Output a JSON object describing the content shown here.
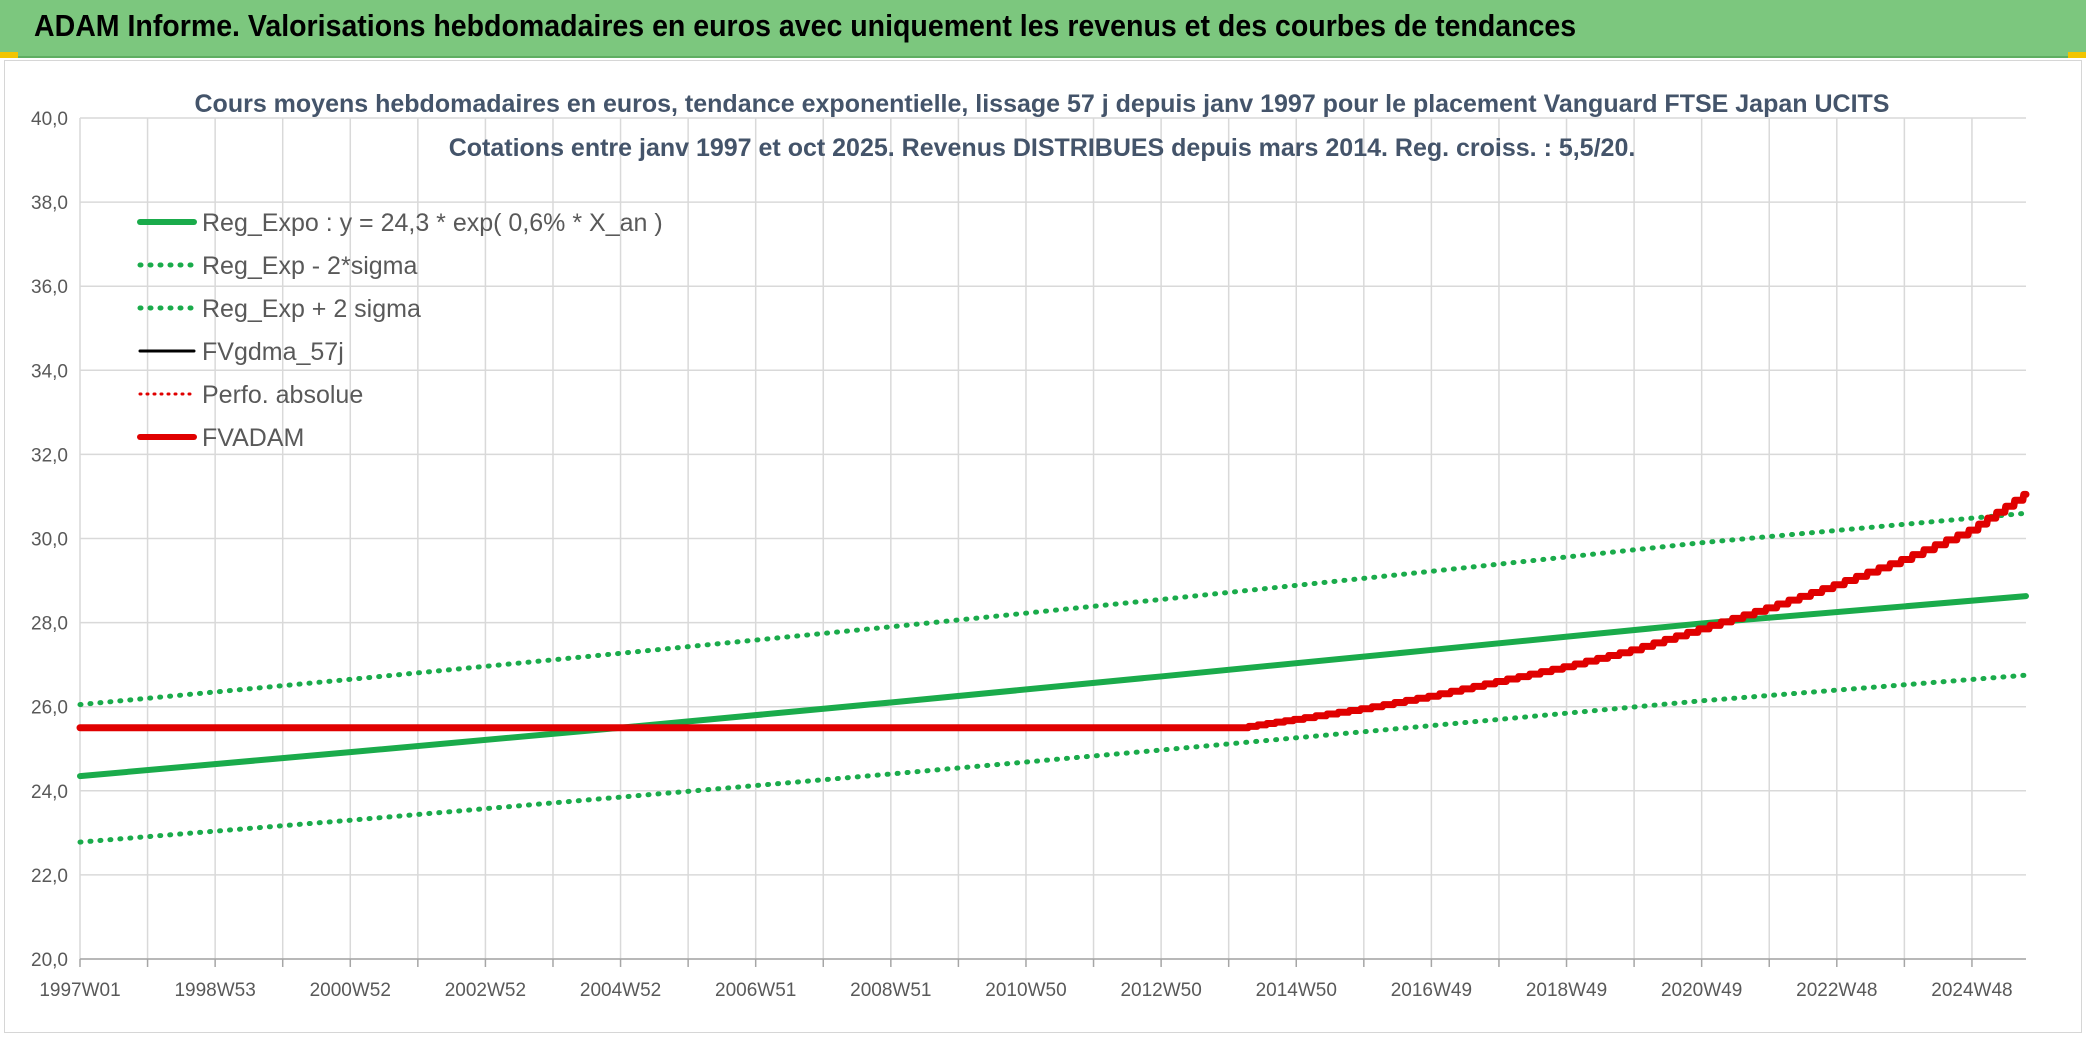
{
  "header": {
    "title": "ADAM Informe. Valorisations hebdomadaires en euros avec uniquement les revenus et des courbes de tendances"
  },
  "chart_data": {
    "type": "line",
    "title": "Cours moyens hebdomadaires en euros, tendance exponentielle, lissage 57 j depuis janv 1997 pour le placement Vanguard FTSE Japan UCITS",
    "subtitle": "Cotations entre janv 1997 et oct 2025. Revenus DISTRIBUES depuis mars 2014. Reg. croiss. : 5,5/20.",
    "xlabel": "",
    "ylabel": "",
    "xlim": [
      1997.0,
      2025.8
    ],
    "ylim": [
      20,
      40
    ],
    "y_ticks": [
      "20,0",
      "22,0",
      "24,0",
      "26,0",
      "28,0",
      "30,0",
      "32,0",
      "34,0",
      "36,0",
      "38,0",
      "40,0"
    ],
    "x_ticks": [
      {
        "label": "1997W01",
        "x": 1997.0
      },
      {
        "label": "1998W53",
        "x": 1999.0
      },
      {
        "label": "2000W52",
        "x": 2001.0
      },
      {
        "label": "2002W52",
        "x": 2003.0
      },
      {
        "label": "2004W52",
        "x": 2005.0
      },
      {
        "label": "2006W51",
        "x": 2007.0
      },
      {
        "label": "2008W51",
        "x": 2009.0
      },
      {
        "label": "2010W50",
        "x": 2011.0
      },
      {
        "label": "2012W50",
        "x": 2013.0
      },
      {
        "label": "2014W50",
        "x": 2015.0
      },
      {
        "label": "2016W49",
        "x": 2017.0
      },
      {
        "label": "2018W49",
        "x": 2019.0
      },
      {
        "label": "2020W49",
        "x": 2021.0
      },
      {
        "label": "2022W48",
        "x": 2023.0
      },
      {
        "label": "2024W48",
        "x": 2025.0
      }
    ],
    "grid": true,
    "legend_position": "top-left",
    "series": [
      {
        "name": "Reg_Expo : y = 24,3 * exp( 0,6% *  X_an )",
        "style": "solid",
        "color": "#1aab4b",
        "x": [
          1997.0,
          2001.0,
          2005.0,
          2009.0,
          2013.0,
          2017.0,
          2021.0,
          2025.8
        ],
        "values": [
          24.35,
          24.92,
          25.5,
          26.1,
          26.72,
          27.35,
          27.98,
          28.63
        ]
      },
      {
        "name": "Reg_Exp - 2*sigma",
        "style": "dotted",
        "color": "#1aab4b",
        "x": [
          1997.0,
          2001.0,
          2005.0,
          2009.0,
          2013.0,
          2017.0,
          2021.0,
          2025.8
        ],
        "values": [
          22.78,
          23.3,
          23.85,
          24.4,
          24.97,
          25.55,
          26.14,
          26.75
        ]
      },
      {
        "name": "Reg_Exp + 2 sigma",
        "style": "dotted",
        "color": "#1aab4b",
        "x": [
          1997.0,
          2001.0,
          2005.0,
          2009.0,
          2013.0,
          2017.0,
          2021.0,
          2025.8
        ],
        "values": [
          26.05,
          26.65,
          27.27,
          27.9,
          28.55,
          29.22,
          29.9,
          30.6
        ]
      },
      {
        "name": "FVgdma_57j",
        "style": "solid",
        "color": "#000000",
        "x": [
          1997.0,
          2014.2,
          2015.0,
          2016.0,
          2017.0,
          2018.0,
          2019.0,
          2020.0,
          2021.0,
          2022.0,
          2023.0,
          2024.0,
          2025.0,
          2025.8
        ],
        "values": [
          25.5,
          25.5,
          25.7,
          25.95,
          26.25,
          26.6,
          26.95,
          27.35,
          27.85,
          28.35,
          28.9,
          29.5,
          30.2,
          31.05
        ]
      },
      {
        "name": "Perfo. absolue",
        "style": "dotted",
        "color": "#e00000",
        "x": [
          1997.0,
          2014.2,
          2015.0,
          2016.0,
          2017.0,
          2018.0,
          2019.0,
          2020.0,
          2021.0,
          2022.0,
          2023.0,
          2024.0,
          2025.0,
          2025.8
        ],
        "values": [
          25.5,
          25.5,
          25.7,
          25.95,
          26.25,
          26.6,
          26.95,
          27.35,
          27.85,
          28.35,
          28.9,
          29.5,
          30.2,
          31.05
        ]
      },
      {
        "name": "FVADAM",
        "style": "solid",
        "color": "#e00000",
        "x": [
          1997.0,
          2014.2,
          2015.0,
          2016.0,
          2017.0,
          2018.0,
          2019.0,
          2020.0,
          2021.0,
          2022.0,
          2023.0,
          2024.0,
          2025.0,
          2025.8
        ],
        "values": [
          25.5,
          25.5,
          25.7,
          25.95,
          26.25,
          26.6,
          26.95,
          27.35,
          27.85,
          28.35,
          28.9,
          29.5,
          30.2,
          31.05
        ]
      }
    ]
  }
}
